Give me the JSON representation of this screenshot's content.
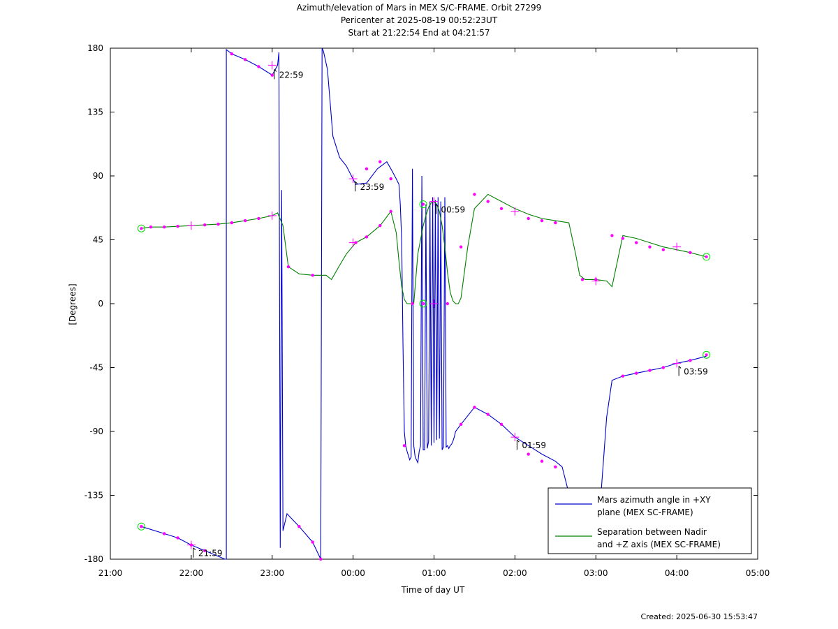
{
  "header": {
    "line1": "Azimuth/elevation of Mars in MEX S/C-FRAME.  Orbit 27299",
    "line2": "Pericenter at 2025-08-19 00:52:23UT",
    "line3": "Start at 21:22:54 End at 04:21:57"
  },
  "footer": {
    "created": "Created: 2025-06-30 15:53:47"
  },
  "chart_data": {
    "type": "line",
    "xlabel": "Time of day UT",
    "ylabel": "[Degrees]",
    "xlim": [
      0,
      480
    ],
    "ylim": [
      -180,
      180
    ],
    "x_ticks": [
      {
        "pos": 0,
        "label": "21:00"
      },
      {
        "pos": 60,
        "label": "22:00"
      },
      {
        "pos": 120,
        "label": "23:00"
      },
      {
        "pos": 180,
        "label": "00:00"
      },
      {
        "pos": 240,
        "label": "01:00"
      },
      {
        "pos": 300,
        "label": "02:00"
      },
      {
        "pos": 360,
        "label": "03:00"
      },
      {
        "pos": 420,
        "label": "04:00"
      },
      {
        "pos": 480,
        "label": "05:00"
      }
    ],
    "y_ticks": [
      180,
      135,
      90,
      45,
      0,
      -45,
      -90,
      -135,
      -180
    ],
    "legend_position": "bottom-right",
    "series": [
      {
        "name": "Mars azimuth angle in +XY plane (MEX SC-FRAME)",
        "legend_lines": [
          "Mars azimuth angle in +XY",
          "plane (MEX SC-FRAME)"
        ],
        "color": "#0000cc",
        "x": [
          23,
          40,
          50,
          60,
          70,
          80,
          85,
          86,
          86,
          90,
          100,
          110,
          120,
          124,
          125,
          126,
          127,
          128,
          131,
          140,
          150,
          156,
          157,
          158,
          161,
          165,
          170,
          175,
          182,
          190,
          198,
          205,
          208,
          212,
          214,
          215,
          216,
          217,
          218,
          219,
          220,
          221,
          222,
          223,
          224,
          225,
          226,
          227,
          228,
          229,
          230,
          231,
          232,
          233,
          234,
          235,
          236,
          237,
          238,
          239,
          240,
          241,
          242,
          243,
          244,
          245,
          246,
          247,
          248,
          249,
          250,
          251,
          252,
          253,
          254,
          255,
          256,
          260,
          270,
          280,
          290,
          300,
          310,
          320,
          330,
          335,
          339,
          345,
          354,
          360,
          363,
          368,
          372,
          380,
          390,
          400,
          410,
          420,
          430,
          442
        ],
        "y": [
          -157,
          -162,
          -165,
          -170,
          -174,
          -178,
          -180,
          -180,
          179,
          176,
          172,
          167,
          161,
          168,
          177,
          -172,
          80,
          -160,
          -148,
          -157,
          -168,
          -180,
          180,
          178,
          165,
          118,
          103,
          97,
          84,
          85,
          95,
          100,
          95,
          88,
          84,
          70,
          45,
          -30,
          -90,
          -100,
          -104,
          -107,
          -110,
          -108,
          95,
          -100,
          -108,
          -110,
          -112,
          -104,
          -100,
          90,
          -103,
          -103,
          70,
          -102,
          -97,
          72,
          -100,
          75,
          -98,
          73,
          -96,
          75,
          -95,
          72,
          -103,
          -101,
          75,
          -101,
          -100,
          -102,
          -100,
          -99,
          -97,
          -94,
          -90,
          -85,
          -73,
          -78,
          -85,
          -94,
          -100,
          -106,
          -111,
          -115,
          -130,
          -150,
          -158,
          -162,
          -145,
          -80,
          -54,
          -51,
          -49,
          -47,
          -45,
          -42,
          -40,
          -37
        ]
      },
      {
        "name": "Separation between Nadir and +Z axis (MEX SC-FRAME)",
        "legend_lines": [
          "Separation between Nadir",
          "and +Z axis (MEX SC-FRAME)"
        ],
        "color": "#007f00",
        "x": [
          23,
          30,
          40,
          50,
          60,
          70,
          80,
          90,
          100,
          110,
          120,
          124,
          128,
          132,
          140,
          150,
          160,
          164,
          170,
          175,
          182,
          190,
          200,
          208,
          212,
          214,
          216,
          218,
          220,
          222,
          224,
          225,
          226,
          228,
          230,
          232,
          234,
          236,
          238,
          240,
          242,
          244,
          246,
          248,
          250,
          252,
          254,
          256,
          258,
          260,
          265,
          270,
          280,
          290,
          300,
          310,
          320,
          330,
          340,
          345,
          348,
          352,
          360,
          368,
          372,
          380,
          390,
          400,
          410,
          420,
          430,
          442
        ],
        "y": [
          53,
          54,
          54,
          54.5,
          55,
          55.5,
          56,
          57,
          58.5,
          60,
          62,
          64,
          55,
          26,
          21,
          20,
          20,
          17,
          27,
          35,
          43,
          47,
          55,
          65,
          50,
          30,
          12,
          3,
          0,
          0,
          0,
          0,
          12,
          35,
          45,
          55,
          62,
          68,
          71,
          72,
          70,
          65,
          55,
          40,
          22,
          8,
          2,
          0,
          0,
          4,
          40,
          67,
          77,
          72,
          67,
          63,
          60,
          58.5,
          57,
          35,
          20,
          17,
          17,
          16,
          12,
          48,
          46,
          43,
          40,
          38,
          36,
          33
        ]
      }
    ],
    "markers": {
      "color": "#ff00ff",
      "dots": [
        {
          "x": 23,
          "y": -157
        },
        {
          "x": 40,
          "y": -162
        },
        {
          "x": 50,
          "y": -165
        },
        {
          "x": 60,
          "y": -170
        },
        {
          "x": 70,
          "y": -174
        },
        {
          "x": 90,
          "y": 176
        },
        {
          "x": 100,
          "y": 172
        },
        {
          "x": 110,
          "y": 167
        },
        {
          "x": 120,
          "y": 161
        },
        {
          "x": 140,
          "y": -157
        },
        {
          "x": 150,
          "y": -168
        },
        {
          "x": 156,
          "y": -180
        },
        {
          "x": 190,
          "y": 95
        },
        {
          "x": 200,
          "y": 100
        },
        {
          "x": 208,
          "y": 88
        },
        {
          "x": 218,
          "y": -100
        },
        {
          "x": 260,
          "y": -85
        },
        {
          "x": 270,
          "y": -73
        },
        {
          "x": 280,
          "y": -78
        },
        {
          "x": 290,
          "y": -85
        },
        {
          "x": 310,
          "y": -106
        },
        {
          "x": 320,
          "y": -111
        },
        {
          "x": 330,
          "y": -115
        },
        {
          "x": 380,
          "y": -51
        },
        {
          "x": 390,
          "y": -49
        },
        {
          "x": 400,
          "y": -47
        },
        {
          "x": 410,
          "y": -45
        },
        {
          "x": 430,
          "y": -40
        },
        {
          "x": 30,
          "y": 54
        },
        {
          "x": 40,
          "y": 54
        },
        {
          "x": 50,
          "y": 54.5
        },
        {
          "x": 70,
          "y": 55.5
        },
        {
          "x": 80,
          "y": 56
        },
        {
          "x": 90,
          "y": 57
        },
        {
          "x": 100,
          "y": 58.5
        },
        {
          "x": 110,
          "y": 60
        },
        {
          "x": 132,
          "y": 26
        },
        {
          "x": 150,
          "y": 20
        },
        {
          "x": 182,
          "y": 43
        },
        {
          "x": 190,
          "y": 47
        },
        {
          "x": 200,
          "y": 55
        },
        {
          "x": 208,
          "y": 65
        },
        {
          "x": 224,
          "y": 0
        },
        {
          "x": 250,
          "y": 0
        },
        {
          "x": 260,
          "y": 40
        },
        {
          "x": 270,
          "y": 77
        },
        {
          "x": 280,
          "y": 72
        },
        {
          "x": 290,
          "y": 67
        },
        {
          "x": 310,
          "y": 60
        },
        {
          "x": 320,
          "y": 58.5
        },
        {
          "x": 330,
          "y": 57
        },
        {
          "x": 350,
          "y": 17
        },
        {
          "x": 360,
          "y": 17
        },
        {
          "x": 372,
          "y": 48
        },
        {
          "x": 380,
          "y": 46
        },
        {
          "x": 390,
          "y": 43
        },
        {
          "x": 400,
          "y": 40
        },
        {
          "x": 410,
          "y": 38
        },
        {
          "x": 430,
          "y": 36
        }
      ],
      "crosses": [
        {
          "x": 60,
          "y": -170
        },
        {
          "x": 120,
          "y": 168
        },
        {
          "x": 180,
          "y": 88
        },
        {
          "x": 240,
          "y": 72
        },
        {
          "x": 300,
          "y": -94
        },
        {
          "x": 420,
          "y": -42
        },
        {
          "x": 60,
          "y": 55
        },
        {
          "x": 120,
          "y": 62
        },
        {
          "x": 180,
          "y": 43
        },
        {
          "x": 240,
          "y": 0
        },
        {
          "x": 300,
          "y": 65
        },
        {
          "x": 360,
          "y": 16
        },
        {
          "x": 420,
          "y": 40
        }
      ],
      "circles": [
        {
          "x": 23,
          "y": 53
        },
        {
          "x": 23,
          "y": -157
        },
        {
          "x": 442,
          "y": 33
        },
        {
          "x": 442,
          "y": -36
        },
        {
          "x": 232,
          "y": 70
        },
        {
          "x": 232,
          "y": 0
        }
      ],
      "time_labels": [
        {
          "x": 60,
          "y": -172,
          "label": "21:59"
        },
        {
          "x": 120,
          "y": 165,
          "label": "22:59"
        },
        {
          "x": 180,
          "y": 86,
          "label": "23:59"
        },
        {
          "x": 240,
          "y": 70,
          "label": "00:59"
        },
        {
          "x": 300,
          "y": -96,
          "label": "01:59"
        },
        {
          "x": 420,
          "y": -44,
          "label": "03:59"
        }
      ]
    }
  }
}
